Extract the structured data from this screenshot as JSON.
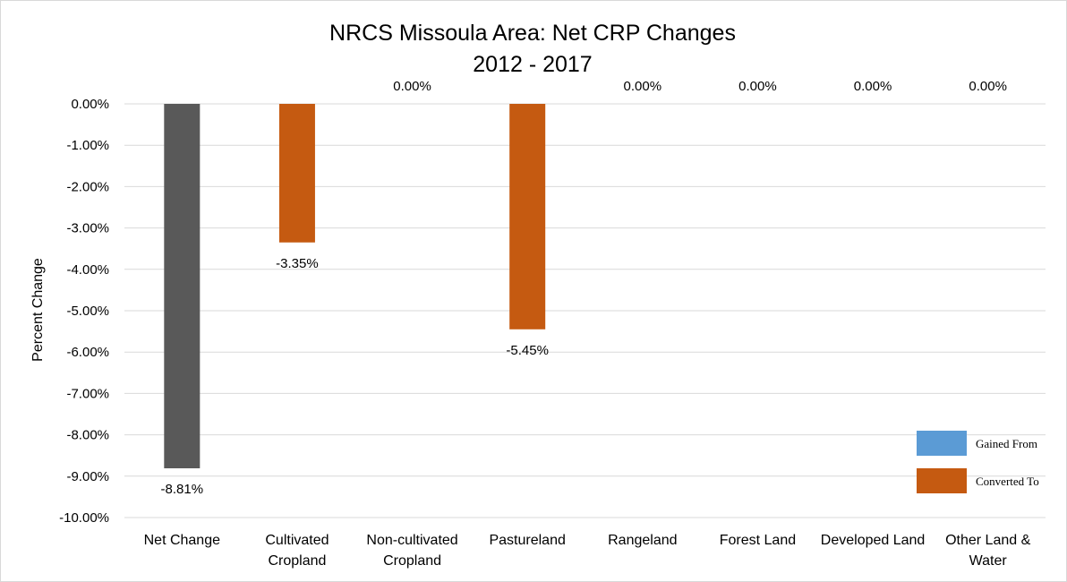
{
  "chart_data": {
    "type": "bar",
    "title": [
      "NRCS Missoula Area: Net CRP Changes",
      "2012 - 2017"
    ],
    "ylabel": "Percent Change",
    "xlabel": "",
    "ylim": [
      -10,
      0
    ],
    "yticks": [
      "0.00%",
      "-1.00%",
      "-2.00%",
      "-3.00%",
      "-4.00%",
      "-5.00%",
      "-6.00%",
      "-7.00%",
      "-8.00%",
      "-9.00%",
      "-10.00%"
    ],
    "categories": [
      [
        "Net Change"
      ],
      [
        "Cultivated",
        "Cropland"
      ],
      [
        "Non-cultivated",
        "Cropland"
      ],
      [
        "Pastureland"
      ],
      [
        "Rangeland"
      ],
      [
        "Forest Land"
      ],
      [
        "Developed Land"
      ],
      [
        "Other Land &",
        "Water"
      ]
    ],
    "values": [
      -8.81,
      -3.35,
      0.0,
      -5.45,
      0.0,
      0.0,
      0.0,
      0.0
    ],
    "data_labels": [
      "-8.81%",
      "-3.35%",
      "0.00%",
      "-5.45%",
      "0.00%",
      "0.00%",
      "0.00%",
      "0.00%"
    ],
    "bar_colors": [
      "#595959",
      "#c55a11",
      "#c55a11",
      "#c55a11",
      "#c55a11",
      "#c55a11",
      "#c55a11",
      "#c55a11"
    ],
    "grid": true,
    "legend": {
      "position": "bottom-right",
      "entries": [
        {
          "label": "Gained From",
          "color": "#5b9bd5"
        },
        {
          "label": "Converted To",
          "color": "#c55a11"
        }
      ]
    }
  }
}
